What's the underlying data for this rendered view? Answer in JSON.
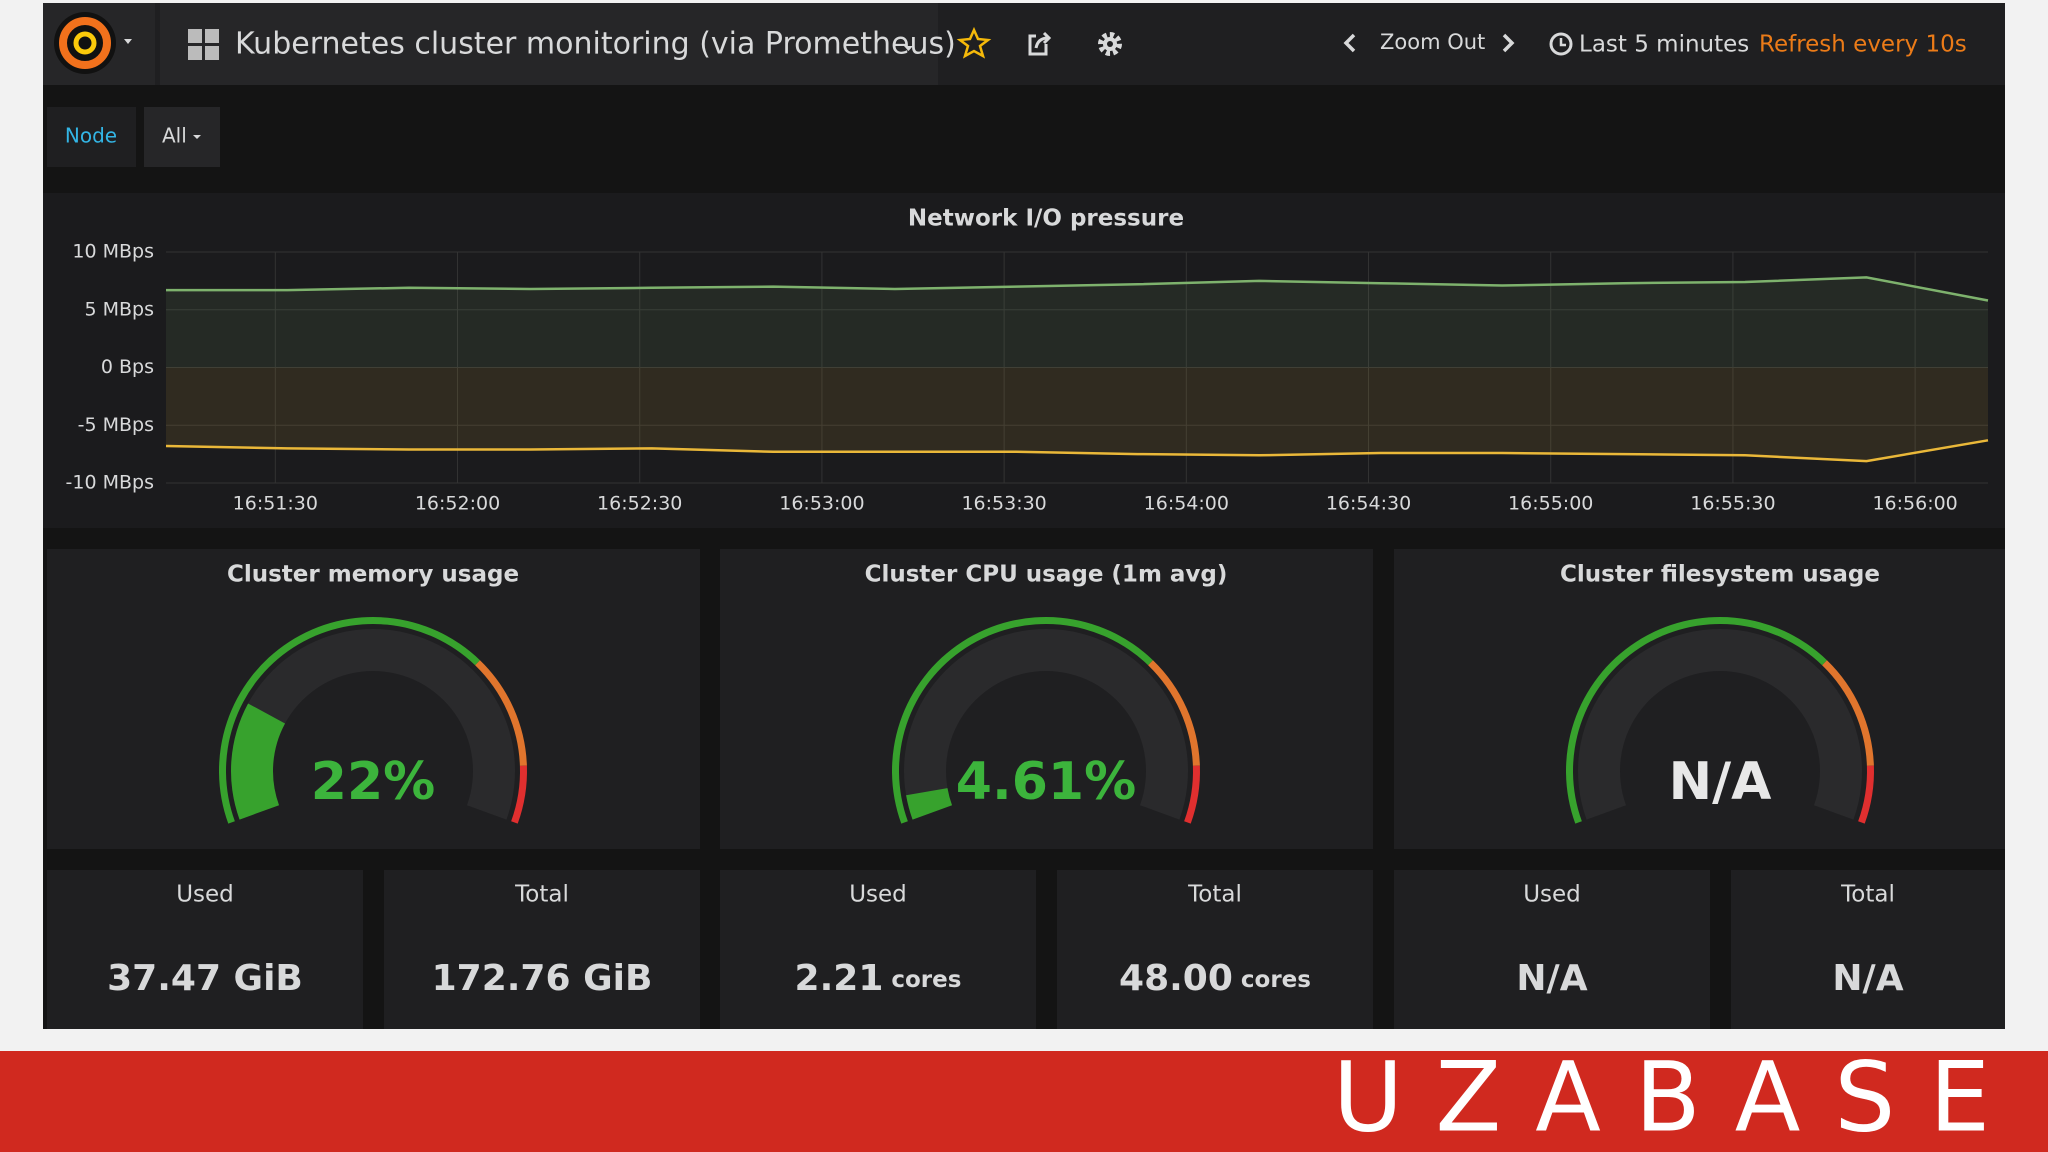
{
  "header": {
    "title": "Kubernetes cluster monitoring (via Prometheus)",
    "zoom": "Zoom Out",
    "time_range": "Last 5 minutes",
    "refresh": "Refresh every 10s"
  },
  "variables": [
    {
      "label": "Node",
      "value": "All"
    }
  ],
  "chart_data": {
    "type": "line",
    "title": "Network I/O pressure",
    "x": [
      "16:51:12",
      "16:51:32",
      "16:51:52",
      "16:52:12",
      "16:52:32",
      "16:52:52",
      "16:53:12",
      "16:53:32",
      "16:53:52",
      "16:54:12",
      "16:54:32",
      "16:54:52",
      "16:55:12",
      "16:55:32",
      "16:55:52",
      "16:56:12"
    ],
    "series": [
      {
        "color": "#7eb26d",
        "values": [
          6.7,
          6.7,
          6.9,
          6.8,
          6.9,
          7.0,
          6.8,
          7.0,
          7.2,
          7.5,
          7.3,
          7.1,
          7.3,
          7.4,
          7.8,
          5.8
        ]
      },
      {
        "color": "#eab839",
        "values": [
          -6.8,
          -7.0,
          -7.1,
          -7.1,
          -7.0,
          -7.3,
          -7.3,
          -7.3,
          -7.5,
          -7.6,
          -7.4,
          -7.4,
          -7.5,
          -7.6,
          -8.1,
          -6.3
        ]
      }
    ],
    "xlim": [
      "16:51:12",
      "16:56:12"
    ],
    "xticks": [
      "16:51:30",
      "16:52:00",
      "16:52:30",
      "16:53:00",
      "16:53:30",
      "16:54:00",
      "16:54:30",
      "16:55:00",
      "16:55:30",
      "16:56:00"
    ],
    "ylim": [
      -10,
      10
    ],
    "yticks": [
      {
        "value": 10,
        "label": "10 MBps"
      },
      {
        "value": 5,
        "label": "5 MBps"
      },
      {
        "value": 0,
        "label": "0 Bps"
      },
      {
        "value": -5,
        "label": "-5 MBps"
      },
      {
        "value": -10,
        "label": "-10 MBps"
      }
    ],
    "grid": true
  },
  "gauges": [
    {
      "title": "Cluster memory usage",
      "value": 22,
      "value_label": "22%"
    },
    {
      "title": "Cluster CPU usage (1m avg)",
      "value": 4.61,
      "value_label": "4.61%"
    },
    {
      "title": "Cluster filesystem usage",
      "value": null,
      "value_label": "N/A"
    }
  ],
  "stats": [
    {
      "label": "Used",
      "value": "37.47 GiB"
    },
    {
      "label": "Total",
      "value": "172.76 GiB"
    },
    {
      "label": "Used",
      "value": "2.21",
      "unit": "cores"
    },
    {
      "label": "Total",
      "value": "48.00",
      "unit": "cores"
    },
    {
      "label": "Used",
      "value": "N/A"
    },
    {
      "label": "Total",
      "value": "N/A"
    }
  ],
  "footer": {
    "brand": "UZABASE"
  }
}
